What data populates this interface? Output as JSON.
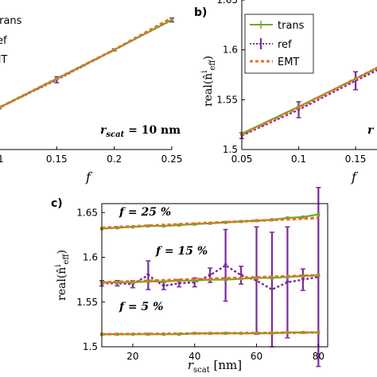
{
  "colors": {
    "trans": "#6aaa2a",
    "ref": "#7b2a9a",
    "emt": "#e8702a",
    "axis": "#000000",
    "background": "#ffffff"
  },
  "panels": {
    "a": {
      "annotation_prefix": "r",
      "annotation_sub": "scat",
      "annotation_value": " = 10 nm",
      "xlabel": "f",
      "legend": [
        "trans",
        "ref",
        "EMT"
      ]
    },
    "b": {
      "label": "b)",
      "legend": [
        "trans",
        "ref",
        "EMT"
      ],
      "xlabel": "f",
      "ylabel_main": "real(n̂",
      "ylabel_sup": "i",
      "ylabel_sub": "eff",
      "ylabel_end": ")",
      "edge_text": "r"
    },
    "c": {
      "label": "c)",
      "xlabel_main": "r",
      "xlabel_sub": "scat",
      "xlabel_unit": " [nm]",
      "ylabel_main": "real(n̂",
      "ylabel_sup": "i",
      "ylabel_sub": "eff",
      "ylabel_end": ")",
      "annotations": [
        "f = 25 %",
        "f = 15 %",
        "f = 5 %"
      ]
    }
  },
  "chart_data": [
    {
      "type": "line",
      "panel": "a",
      "xlim": [
        0.08,
        0.25
      ],
      "ylim": [
        1.5,
        1.65
      ],
      "x_ticks": [
        0.1,
        0.15,
        0.2,
        0.25
      ],
      "x_tick_labels": [
        ".1",
        "0.15",
        "0.2",
        "0.25"
      ],
      "grid": false,
      "legend_position": "top-left",
      "series": [
        {
          "name": "trans",
          "x": [
            0.05,
            0.1,
            0.15,
            0.2,
            0.25
          ],
          "y": [
            1.516,
            1.542,
            1.571,
            1.6,
            1.63
          ]
        },
        {
          "name": "ref",
          "x": [
            0.05,
            0.1,
            0.15,
            0.2,
            0.25
          ],
          "y": [
            1.516,
            1.542,
            1.57,
            1.6,
            1.63
          ],
          "err": [
            0.0,
            0.001,
            0.003,
            0.001,
            0.002
          ]
        },
        {
          "name": "EMT",
          "x": [
            0.05,
            0.1,
            0.15,
            0.2,
            0.25
          ],
          "y": [
            1.515,
            1.542,
            1.571,
            1.6,
            1.632
          ]
        }
      ]
    },
    {
      "type": "line",
      "panel": "b",
      "xlim": [
        0.05,
        0.18
      ],
      "ylim": [
        1.5,
        1.65
      ],
      "x_ticks": [
        0.05,
        0.1,
        0.15
      ],
      "x_tick_labels": [
        "0.05",
        "0.1",
        "0.15"
      ],
      "y_ticks": [
        1.5,
        1.55,
        1.6,
        1.65
      ],
      "y_tick_labels": [
        "1.5",
        "1.55",
        "1.6",
        "1.65"
      ],
      "grid": false,
      "legend_position": "top-left",
      "series": [
        {
          "name": "trans",
          "x": [
            0.05,
            0.1,
            0.15,
            0.2
          ],
          "y": [
            1.516,
            1.543,
            1.571,
            1.6
          ]
        },
        {
          "name": "ref",
          "x": [
            0.05,
            0.1,
            0.15,
            0.2
          ],
          "y": [
            1.514,
            1.54,
            1.569,
            1.597
          ],
          "err": [
            0.003,
            0.008,
            0.009,
            0.006
          ]
        },
        {
          "name": "EMT",
          "x": [
            0.05,
            0.1,
            0.15,
            0.2
          ],
          "y": [
            1.515,
            1.542,
            1.571,
            1.6
          ]
        }
      ]
    },
    {
      "type": "line",
      "panel": "c",
      "xlim": [
        10,
        83
      ],
      "ylim": [
        1.5,
        1.66
      ],
      "x_ticks": [
        20,
        40,
        60,
        80
      ],
      "x_tick_labels": [
        "20",
        "40",
        "60",
        "80"
      ],
      "y_ticks": [
        1.5,
        1.55,
        1.6,
        1.65
      ],
      "y_tick_labels": [
        "1.5",
        "1.55",
        "1.6",
        "1.65"
      ],
      "grid": false,
      "series": [
        {
          "name": "trans f=25%",
          "x": [
            10,
            15,
            20,
            25,
            30,
            35,
            40,
            45,
            50,
            55,
            60,
            65,
            70,
            75,
            80
          ],
          "y": [
            1.632,
            1.633,
            1.634,
            1.635,
            1.635,
            1.636,
            1.637,
            1.638,
            1.639,
            1.64,
            1.641,
            1.642,
            1.644,
            1.645,
            1.648
          ]
        },
        {
          "name": "EMT f=25%",
          "x": [
            10,
            80
          ],
          "y": [
            1.633,
            1.644
          ]
        },
        {
          "name": "trans f=15%",
          "x": [
            10,
            15,
            20,
            25,
            30,
            35,
            40,
            45,
            50,
            55,
            60,
            65,
            70,
            75,
            80
          ],
          "y": [
            1.572,
            1.572,
            1.572,
            1.573,
            1.573,
            1.574,
            1.574,
            1.575,
            1.575,
            1.576,
            1.577,
            1.577,
            1.578,
            1.579,
            1.58
          ]
        },
        {
          "name": "ref f=15%",
          "x": [
            10,
            15,
            20,
            25,
            30,
            35,
            40,
            45,
            50,
            55,
            60,
            65,
            70,
            75,
            80
          ],
          "y": [
            1.571,
            1.571,
            1.57,
            1.58,
            1.568,
            1.571,
            1.572,
            1.58,
            1.591,
            1.58,
            1.574,
            1.564,
            1.572,
            1.575,
            1.578
          ],
          "err": [
            0.003,
            0.003,
            0.004,
            0.016,
            0.004,
            0.004,
            0.005,
            0.008,
            0.04,
            0.01,
            0.06,
            0.064,
            0.062,
            0.012,
            0.1
          ]
        },
        {
          "name": "EMT f=15%",
          "x": [
            10,
            80
          ],
          "y": [
            1.572,
            1.58
          ]
        },
        {
          "name": "trans f=5%",
          "x": [
            10,
            15,
            20,
            25,
            30,
            35,
            40,
            45,
            50,
            55,
            60,
            65,
            70,
            75,
            80
          ],
          "y": [
            1.514,
            1.514,
            1.514,
            1.514,
            1.514,
            1.514,
            1.515,
            1.515,
            1.515,
            1.515,
            1.515,
            1.515,
            1.516,
            1.516,
            1.516
          ]
        },
        {
          "name": "EMT f=5%",
          "x": [
            10,
            80
          ],
          "y": [
            1.514,
            1.516
          ]
        }
      ]
    }
  ]
}
